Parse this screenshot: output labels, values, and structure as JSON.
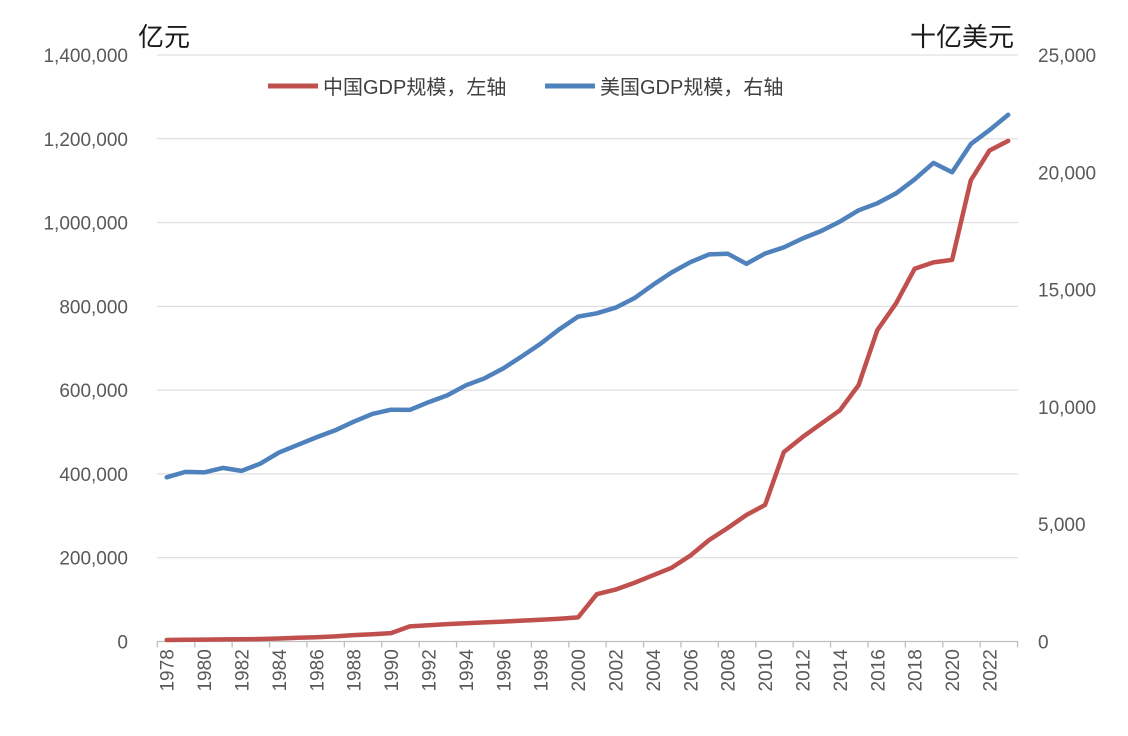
{
  "chart_data": {
    "type": "line",
    "title": "",
    "grid": true,
    "legend_position": "top",
    "left_axis": {
      "title": "亿元",
      "min": 0,
      "max": 1400000,
      "step": 200000,
      "tick_labels": [
        "0",
        "200,000",
        "400,000",
        "600,000",
        "800,000",
        "1,000,000",
        "1,200,000",
        "1,400,000"
      ]
    },
    "right_axis": {
      "title": "十亿美元",
      "min": 0,
      "max": 25000,
      "step": 5000,
      "tick_labels": [
        "0",
        "5,000",
        "10,000",
        "15,000",
        "20,000",
        "25,000"
      ]
    },
    "x_axis": {
      "start_year": 1978,
      "end_year": 2023,
      "tick_label_years": [
        "1978",
        "1980",
        "1982",
        "1984",
        "1986",
        "1988",
        "1990",
        "1992",
        "1994",
        "1996",
        "1998",
        "2000",
        "2002",
        "2004",
        "2006",
        "2008",
        "2010",
        "2012",
        "2014",
        "2016",
        "2018",
        "2020",
        "2022"
      ],
      "label_rotation_deg": 90
    },
    "legend": [
      {
        "label": "中国GDP规模，左轴",
        "color": "#C0504D"
      },
      {
        "label": "美国GDP规模，右轴",
        "color": "#4F81BD"
      }
    ],
    "series": [
      {
        "name": "中国GDP规模，左轴",
        "axis": "left",
        "unit": "亿元",
        "color": "#C0504D",
        "values": [
          3679,
          4100,
          4588,
          4936,
          5323,
          5963,
          7279,
          9099,
          10376,
          12175,
          15180,
          17179,
          20000,
          36000,
          39000,
          41500,
          43500,
          45500,
          47500,
          50000,
          52000,
          54500,
          57500,
          113000,
          124000,
          140000,
          158000,
          176000,
          205000,
          242000,
          271000,
          302000,
          326000,
          452000,
          488000,
          520000,
          552000,
          612000,
          743000,
          807000,
          890000,
          905000,
          911000,
          1101000,
          1172000,
          1195000
        ]
      },
      {
        "name": "美国GDP规模，右轴",
        "axis": "right",
        "unit": "十亿美元",
        "color": "#4F81BD",
        "values": [
          7000,
          7230,
          7210,
          7400,
          7270,
          7580,
          8050,
          8380,
          8700,
          9000,
          9370,
          9700,
          9880,
          9870,
          10200,
          10490,
          10920,
          11220,
          11640,
          12160,
          12700,
          13310,
          13850,
          13990,
          14230,
          14630,
          15200,
          15730,
          16170,
          16500,
          16530,
          16100,
          16540,
          16800,
          17180,
          17500,
          17900,
          18380,
          18680,
          19100,
          19700,
          20400,
          20000,
          21200,
          21800,
          22450
        ]
      }
    ]
  },
  "colors": {
    "background": "#ffffff",
    "gridline": "#d9d9d9",
    "axis_line": "#bfbfbf",
    "tick_text": "#595959",
    "china_line": "#C0504D",
    "us_line": "#4F81BD"
  }
}
